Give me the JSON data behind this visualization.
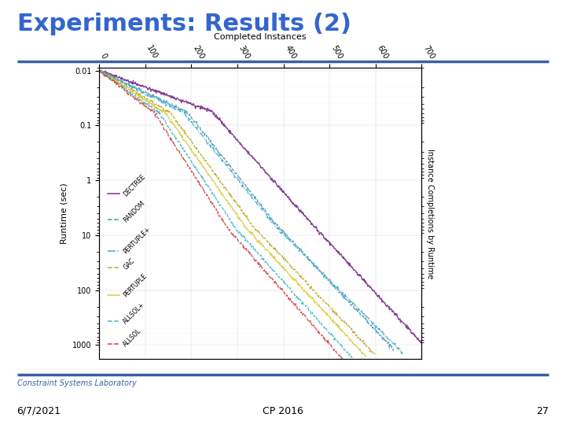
{
  "title": "Experiments: Results (2)",
  "title_color": "#3366CC",
  "title_fontsize": 22,
  "bg_color": "#FFFFFF",
  "bar_color": "#3B5EA6",
  "xlabel": "Completed Instances",
  "ylabel": "Runtime (sec)",
  "ylabel2": "Instance Completions by Runtime",
  "x_ticks": [
    0,
    100,
    200,
    300,
    400,
    500,
    600,
    700
  ],
  "y_ticks_log": [
    0.01,
    0.1,
    1,
    10,
    100,
    1000
  ],
  "y_tick_labels": [
    "0.01",
    "0.1",
    "1",
    "10",
    "100",
    "1000"
  ],
  "footer_left": "Constraint Systems Laboratory",
  "footer_center": "CP 2016",
  "footer_date": "6/7/2021",
  "footer_page": "27",
  "series": [
    {
      "name": "DECTREE",
      "color": "#7B2D8B",
      "linestyle": "-",
      "linewidth": 1.0
    },
    {
      "name": "RANDOM",
      "color": "#4499BB",
      "linestyle": "--",
      "linewidth": 0.9
    },
    {
      "name": "PERTUPLE+",
      "color": "#44AACC",
      "linestyle": "-.",
      "linewidth": 0.9
    },
    {
      "name": "GAC",
      "color": "#BBAA22",
      "linestyle": "--",
      "linewidth": 0.9
    },
    {
      "name": "PERTUPLE",
      "color": "#DDCC44",
      "linestyle": "-",
      "linewidth": 0.9
    },
    {
      "name": "ALLSOL+",
      "color": "#44BBCC",
      "linestyle": "--",
      "linewidth": 0.9
    },
    {
      "name": "ALLSOL",
      "color": "#CC4444",
      "linestyle": "--",
      "linewidth": 0.9
    }
  ],
  "curves": [
    {
      "name": "DECTREE",
      "n_max": 700,
      "t_min": 0.01,
      "t_mid": 0.8,
      "t_max": 900,
      "bend1": 0.35,
      "bend2": 0.65
    },
    {
      "name": "RANDOM",
      "n_max": 640,
      "t_min": 0.01,
      "t_mid": 0.5,
      "t_max": 1200,
      "bend1": 0.3,
      "bend2": 0.6
    },
    {
      "name": "PERTUPLE+",
      "n_max": 660,
      "t_min": 0.01,
      "t_mid": 0.4,
      "t_max": 1400,
      "bend1": 0.28,
      "bend2": 0.58
    },
    {
      "name": "GAC",
      "n_max": 600,
      "t_min": 0.01,
      "t_mid": 0.3,
      "t_max": 1500,
      "bend1": 0.26,
      "bend2": 0.56
    },
    {
      "name": "PERTUPLE",
      "n_max": 580,
      "t_min": 0.01,
      "t_mid": 0.25,
      "t_max": 1600,
      "bend1": 0.25,
      "bend2": 0.55
    },
    {
      "name": "ALLSOL+",
      "n_max": 550,
      "t_min": 0.01,
      "t_mid": 0.2,
      "t_max": 1700,
      "bend1": 0.24,
      "bend2": 0.54
    },
    {
      "name": "ALLSOL",
      "n_max": 530,
      "t_min": 0.01,
      "t_mid": 0.18,
      "t_max": 1800,
      "bend1": 0.23,
      "bend2": 0.53
    }
  ]
}
